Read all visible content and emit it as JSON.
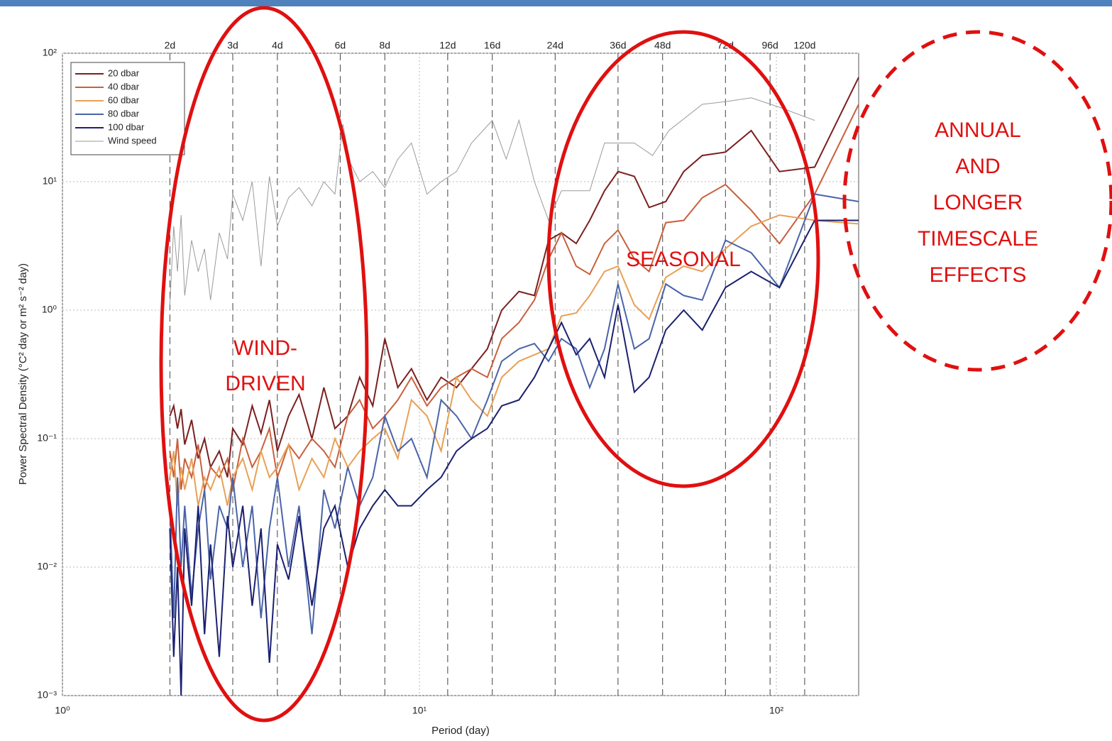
{
  "chart_data": {
    "type": "line",
    "xlabel": "Period (day)",
    "ylabel": "Power Spectral Density (°C² day or m² s⁻² day)",
    "xscale": "log",
    "yscale": "log",
    "xlim": [
      1,
      170
    ],
    "ylim": [
      0.001,
      100
    ],
    "xticks": [
      {
        "value": 1,
        "label": "10⁰"
      },
      {
        "value": 10,
        "label": "10¹"
      },
      {
        "value": 100,
        "label": "10²"
      }
    ],
    "yticks": [
      {
        "value": 0.001,
        "label": "10⁻³"
      },
      {
        "value": 0.01,
        "label": "10⁻²"
      },
      {
        "value": 0.1,
        "label": "10⁻¹"
      },
      {
        "value": 1,
        "label": "10⁰"
      },
      {
        "value": 10,
        "label": "10¹"
      },
      {
        "value": 100,
        "label": "10²"
      }
    ],
    "x2ticks": [
      {
        "value": 2,
        "label": "2d"
      },
      {
        "value": 3,
        "label": "3d"
      },
      {
        "value": 4,
        "label": "4d"
      },
      {
        "value": 6,
        "label": "6d"
      },
      {
        "value": 8,
        "label": "8d"
      },
      {
        "value": 12,
        "label": "12d"
      },
      {
        "value": 16,
        "label": "16d"
      },
      {
        "value": 24,
        "label": "24d"
      },
      {
        "value": 36,
        "label": "36d"
      },
      {
        "value": 48,
        "label": "48d"
      },
      {
        "value": 72,
        "label": "72d"
      },
      {
        "value": 96,
        "label": "96d"
      },
      {
        "value": 120,
        "label": "120d"
      }
    ],
    "grid": true,
    "legend": "upper left",
    "x": [
      2,
      2.05,
      2.1,
      2.15,
      2.2,
      2.3,
      2.4,
      2.5,
      2.6,
      2.75,
      2.9,
      3.0,
      3.2,
      3.4,
      3.6,
      3.8,
      4.0,
      4.3,
      4.6,
      5.0,
      5.4,
      5.8,
      6.3,
      6.8,
      7.4,
      8.0,
      8.7,
      9.5,
      10.5,
      11.5,
      12.7,
      14,
      15.5,
      17,
      19,
      21,
      23,
      25,
      27.5,
      30,
      33,
      36,
      40,
      44,
      49,
      55,
      62,
      72,
      85,
      102,
      128,
      170
    ],
    "series": [
      {
        "name": "20 dbar",
        "color": "#7b2020",
        "values": [
          0.15,
          0.18,
          0.12,
          0.17,
          0.09,
          0.14,
          0.07,
          0.1,
          0.06,
          0.08,
          0.05,
          0.12,
          0.09,
          0.18,
          0.11,
          0.2,
          0.08,
          0.15,
          0.22,
          0.1,
          0.25,
          0.12,
          0.15,
          0.3,
          0.18,
          0.6,
          0.25,
          0.35,
          0.2,
          0.3,
          0.25,
          0.35,
          0.5,
          1.0,
          1.4,
          1.3,
          3.5,
          4.0,
          3.3,
          5.0,
          8.5,
          12,
          11,
          6.3,
          7,
          12,
          16,
          17,
          25,
          12,
          13,
          65
        ]
      },
      {
        "name": "40 dbar",
        "color": "#c9603c",
        "values": [
          0.08,
          0.05,
          0.1,
          0.04,
          0.07,
          0.05,
          0.09,
          0.04,
          0.06,
          0.05,
          0.07,
          0.04,
          0.1,
          0.06,
          0.08,
          0.12,
          0.05,
          0.09,
          0.07,
          0.1,
          0.08,
          0.06,
          0.15,
          0.2,
          0.12,
          0.15,
          0.2,
          0.3,
          0.18,
          0.25,
          0.3,
          0.35,
          0.3,
          0.6,
          0.8,
          1.2,
          2.5,
          4.0,
          2.2,
          1.9,
          3.3,
          4.2,
          2.5,
          2.0,
          4.8,
          5.0,
          7.5,
          9.5,
          6.0,
          3.3,
          8.0,
          40
        ]
      },
      {
        "name": "60 dbar",
        "color": "#e8a055",
        "values": [
          0.05,
          0.08,
          0.03,
          0.06,
          0.04,
          0.07,
          0.03,
          0.05,
          0.04,
          0.06,
          0.03,
          0.05,
          0.07,
          0.04,
          0.08,
          0.05,
          0.06,
          0.09,
          0.04,
          0.07,
          0.05,
          0.1,
          0.06,
          0.08,
          0.1,
          0.12,
          0.07,
          0.2,
          0.15,
          0.08,
          0.3,
          0.2,
          0.15,
          0.3,
          0.4,
          0.45,
          0.5,
          0.9,
          0.95,
          1.3,
          2.0,
          2.2,
          1.1,
          0.85,
          1.8,
          2.2,
          2.0,
          3.0,
          4.5,
          5.5,
          5.0,
          4.7
        ]
      },
      {
        "name": "80 dbar",
        "color": "#4a64a8",
        "values": [
          0.03,
          0.004,
          0.05,
          0.01,
          0.03,
          0.006,
          0.02,
          0.04,
          0.008,
          0.03,
          0.02,
          0.05,
          0.01,
          0.03,
          0.004,
          0.02,
          0.05,
          0.01,
          0.03,
          0.003,
          0.04,
          0.02,
          0.06,
          0.03,
          0.05,
          0.15,
          0.08,
          0.1,
          0.05,
          0.2,
          0.15,
          0.1,
          0.2,
          0.4,
          0.5,
          0.55,
          0.4,
          0.6,
          0.5,
          0.25,
          0.5,
          1.6,
          0.5,
          0.6,
          1.6,
          1.3,
          1.2,
          3.5,
          2.8,
          1.5,
          8.0,
          7.0
        ]
      },
      {
        "name": "100 dbar",
        "color": "#1b2070",
        "values": [
          0.02,
          0.002,
          0.01,
          0.001,
          0.02,
          0.005,
          0.03,
          0.003,
          0.015,
          0.002,
          0.025,
          0.01,
          0.03,
          0.005,
          0.02,
          0.0018,
          0.015,
          0.008,
          0.025,
          0.005,
          0.02,
          0.03,
          0.01,
          0.02,
          0.03,
          0.04,
          0.03,
          0.03,
          0.04,
          0.05,
          0.08,
          0.1,
          0.12,
          0.18,
          0.2,
          0.3,
          0.5,
          0.8,
          0.45,
          0.6,
          0.3,
          1.1,
          0.23,
          0.3,
          0.7,
          1.0,
          0.7,
          1.5,
          2.0,
          1.5,
          5.0,
          5.0
        ]
      },
      {
        "name": "Wind speed",
        "color": "#9a9a9a",
        "x": [
          2,
          2.05,
          2.1,
          2.15,
          2.2,
          2.3,
          2.4,
          2.5,
          2.6,
          2.75,
          2.9,
          3.0,
          3.2,
          3.4,
          3.6,
          3.8,
          4.0,
          4.3,
          4.6,
          5.0,
          5.4,
          5.8,
          6.1,
          6.4,
          6.8,
          7.4,
          8.0,
          8.7,
          9.5,
          10.5,
          11.5,
          12.7,
          14,
          16,
          17.5,
          19,
          21,
          23,
          25,
          27.5,
          30,
          33,
          36,
          40,
          45,
          50,
          62,
          72,
          85,
          102,
          128
        ],
        "values": [
          1.1,
          4.5,
          2,
          5.5,
          1.3,
          3.5,
          2,
          3,
          1.2,
          4,
          2.5,
          8,
          5,
          10,
          2.2,
          11,
          4.5,
          7.5,
          9,
          6.5,
          10,
          8,
          28,
          14,
          10,
          12,
          9,
          15,
          20,
          8,
          10,
          12,
          20,
          30,
          15,
          30,
          10,
          5,
          8.5,
          8.5,
          8.5,
          20,
          20,
          20,
          16,
          25,
          40,
          42,
          45,
          38,
          30
        ]
      }
    ],
    "annotations": [
      {
        "lines": [
          "WIND-",
          "DRIVEN"
        ]
      },
      {
        "lines": [
          "SEASONAL"
        ]
      },
      {
        "lines": [
          "ANNUAL",
          "AND",
          "LONGER",
          "TIMESCALE",
          "EFFECTS"
        ]
      }
    ]
  }
}
